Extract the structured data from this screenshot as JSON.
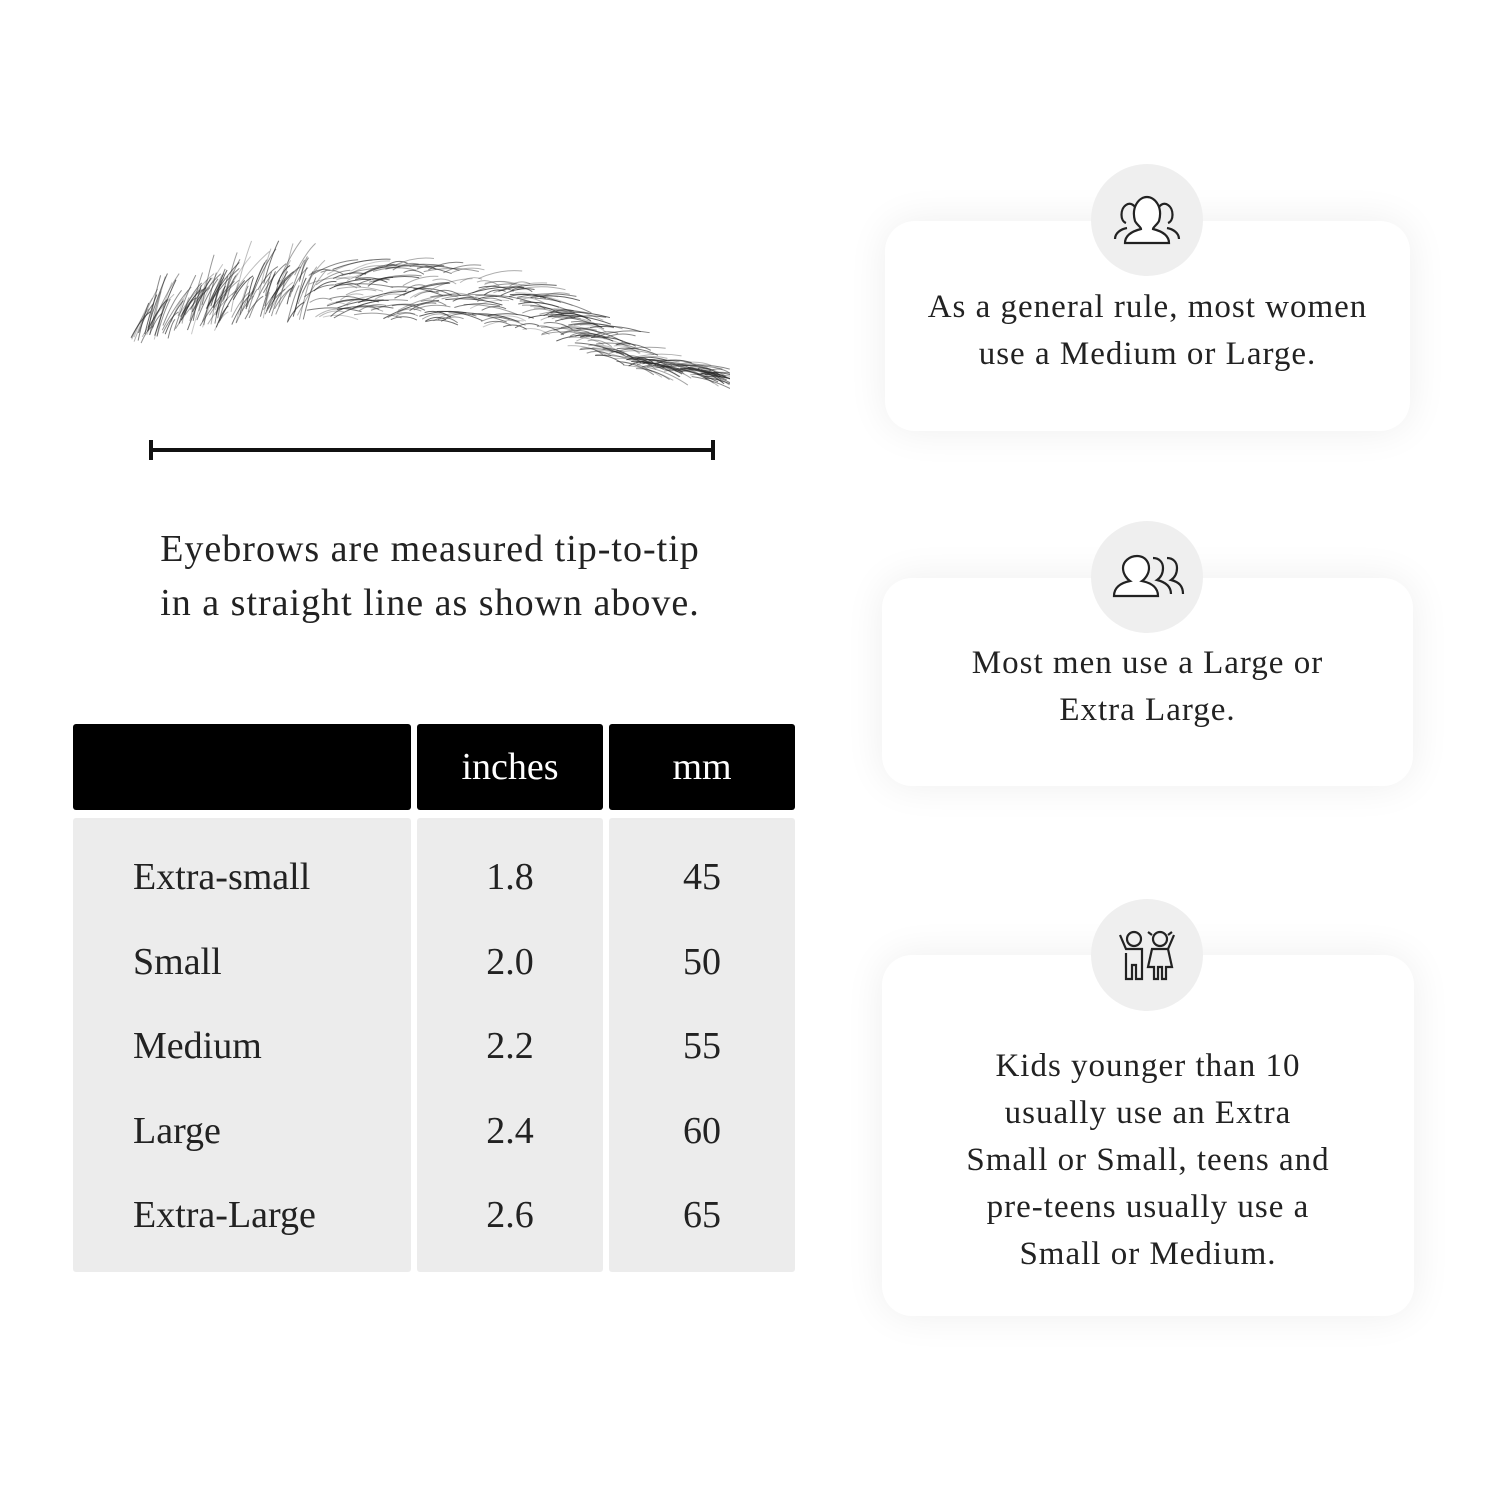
{
  "caption": {
    "line1": "Eyebrows are measured tip-to-tip",
    "line2": "in a straight line as shown above."
  },
  "table": {
    "headers": [
      "",
      "inches",
      "mm"
    ],
    "rows": [
      {
        "size": "Extra-small",
        "inches": "1.8",
        "mm": "45"
      },
      {
        "size": "Small",
        "inches": "2.0",
        "mm": "50"
      },
      {
        "size": "Medium",
        "inches": "2.2",
        "mm": "55"
      },
      {
        "size": "Large",
        "inches": "2.4",
        "mm": "60"
      },
      {
        "size": "Extra-Large",
        "inches": "2.6",
        "mm": "65"
      }
    ]
  },
  "cards": [
    {
      "icon": "women-group-icon",
      "lines": [
        "As a general rule, most women",
        "use a Medium or Large."
      ]
    },
    {
      "icon": "men-group-icon",
      "lines": [
        "Most men use a Large or",
        "Extra Large."
      ]
    },
    {
      "icon": "kids-icon",
      "lines": [
        "Kids younger than 10",
        "usually use an Extra",
        "Small or Small, teens and",
        "pre-teens usually use a",
        "Small or Medium."
      ]
    }
  ],
  "colors": {
    "header_bg": "#000000",
    "body_bg": "#ececec",
    "icon_circle": "#efefef"
  }
}
